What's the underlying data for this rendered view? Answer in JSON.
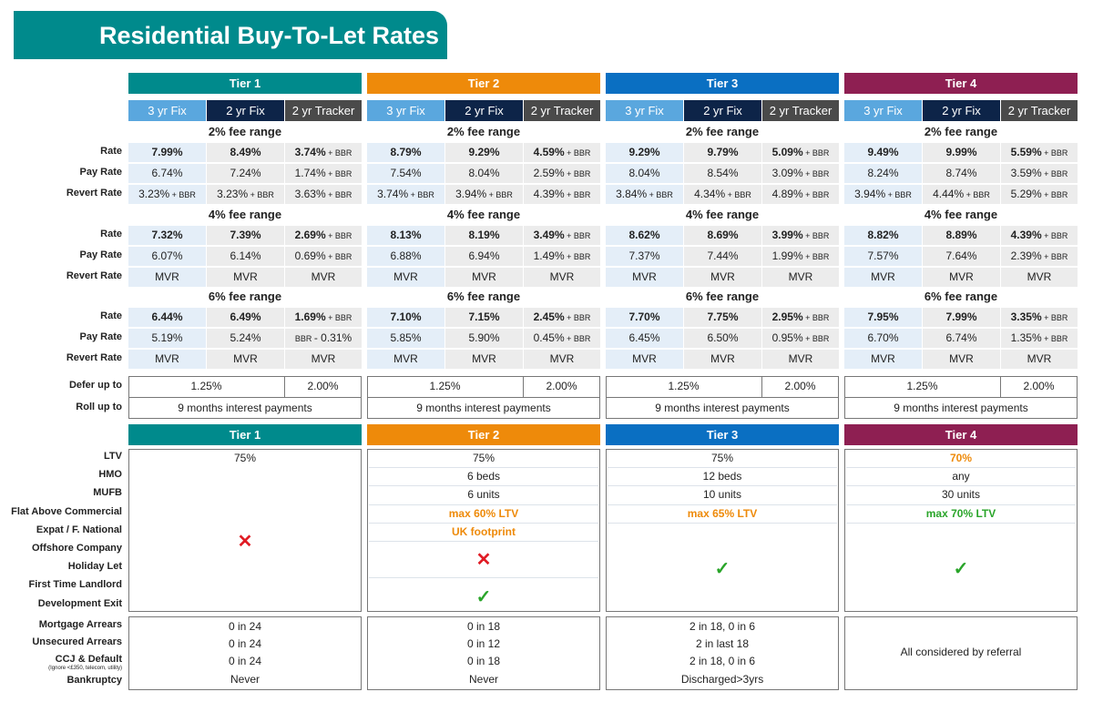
{
  "title": "Residential Buy-To-Let Rates",
  "products": [
    "3 yr Fix",
    "2 yr Fix",
    "2 yr Tracker"
  ],
  "product_colors": [
    "#5aa7de",
    "#0d2448",
    "#4a4a4a"
  ],
  "fee_ranges": [
    "2% fee range",
    "4% fee range",
    "6% fee range"
  ],
  "row_labels": [
    "Rate",
    "Pay Rate",
    "Revert Rate"
  ],
  "defer_label": "Defer up to",
  "rollup_label": "Roll up  to",
  "criteria_labels": [
    "LTV",
    "HMO",
    "MUFB",
    "Flat Above Commercial",
    "Expat / F. National",
    "Offshore Company",
    "Holiday Let",
    "First Time Landlord",
    "Development Exit"
  ],
  "credit_labels": [
    "Mortgage Arrears",
    "Unsecured Arrears",
    "CCJ & Default",
    "Bankruptcy"
  ],
  "ccj_note": "(Ignore <£350, telecom, utility)",
  "colors": {
    "orange": "#ee8a0a",
    "green": "#2aa52a",
    "red": "#e01b24"
  },
  "tiers": [
    {
      "name": "Tier 1",
      "color": "#008a8c",
      "rates": [
        [
          [
            {
              "v": "7.99%"
            },
            {
              "v": "8.49%"
            },
            {
              "v": "3.74%",
              "s": "+ BBR"
            }
          ],
          [
            {
              "v": "6.74%"
            },
            {
              "v": "7.24%"
            },
            {
              "v": "1.74%",
              "s": "+ BBR"
            }
          ],
          [
            {
              "v": "3.23%",
              "s": "+ BBR"
            },
            {
              "v": "3.23%",
              "s": "+ BBR"
            },
            {
              "v": "3.63%",
              "s": "+ BBR"
            }
          ]
        ],
        [
          [
            {
              "v": "7.32%"
            },
            {
              "v": "7.39%"
            },
            {
              "v": "2.69%",
              "s": "+ BBR"
            }
          ],
          [
            {
              "v": "6.07%"
            },
            {
              "v": "6.14%"
            },
            {
              "v": "0.69%",
              "s": "+ BBR"
            }
          ],
          [
            {
              "v": "MVR"
            },
            {
              "v": "MVR"
            },
            {
              "v": "MVR"
            }
          ]
        ],
        [
          [
            {
              "v": "6.44%"
            },
            {
              "v": "6.49%"
            },
            {
              "v": "1.69%",
              "s": "+ BBR"
            }
          ],
          [
            {
              "v": "5.19%"
            },
            {
              "v": "5.24%"
            },
            {
              "p": "BBR",
              "v": "- 0.31%"
            }
          ],
          [
            {
              "v": "MVR"
            },
            {
              "v": "MVR"
            },
            {
              "v": "MVR"
            }
          ]
        ]
      ],
      "defer": [
        "1.25%",
        "2.00%"
      ],
      "rollup": "9 months interest payments",
      "criteria": [
        {
          "row": 0,
          "span": 1,
          "text": "75%"
        },
        {
          "row": 1,
          "span": 8,
          "icon": "cross-icon"
        }
      ],
      "credit": [
        "0 in 24",
        "0 in 24",
        "0 in 24",
        "Never"
      ]
    },
    {
      "name": "Tier 2",
      "color": "#ee8a0a",
      "rates": [
        [
          [
            {
              "v": "8.79%"
            },
            {
              "v": "9.29%"
            },
            {
              "v": "4.59%",
              "s": "+ BBR"
            }
          ],
          [
            {
              "v": "7.54%"
            },
            {
              "v": "8.04%"
            },
            {
              "v": "2.59%",
              "s": "+ BBR"
            }
          ],
          [
            {
              "v": "3.74%",
              "s": "+ BBR"
            },
            {
              "v": "3.94%",
              "s": "+ BBR"
            },
            {
              "v": "4.39%",
              "s": "+ BBR"
            }
          ]
        ],
        [
          [
            {
              "v": "8.13%"
            },
            {
              "v": "8.19%"
            },
            {
              "v": "3.49%",
              "s": "+ BBR"
            }
          ],
          [
            {
              "v": "6.88%"
            },
            {
              "v": "6.94%"
            },
            {
              "v": "1.49%",
              "s": "+ BBR"
            }
          ],
          [
            {
              "v": "MVR"
            },
            {
              "v": "MVR"
            },
            {
              "v": "MVR"
            }
          ]
        ],
        [
          [
            {
              "v": "7.10%"
            },
            {
              "v": "7.15%"
            },
            {
              "v": "2.45%",
              "s": "+ BBR"
            }
          ],
          [
            {
              "v": "5.85%"
            },
            {
              "v": "5.90%"
            },
            {
              "v": "0.45%",
              "s": "+ BBR"
            }
          ],
          [
            {
              "v": "MVR"
            },
            {
              "v": "MVR"
            },
            {
              "v": "MVR"
            }
          ]
        ]
      ],
      "defer": [
        "1.25%",
        "2.00%"
      ],
      "rollup": "9 months interest payments",
      "criteria": [
        {
          "row": 0,
          "span": 1,
          "text": "75%"
        },
        {
          "row": 1,
          "span": 1,
          "text": "6 beds"
        },
        {
          "row": 2,
          "span": 1,
          "text": "6 units"
        },
        {
          "row": 3,
          "span": 1,
          "text": "max 60% LTV",
          "color": "orange"
        },
        {
          "row": 4,
          "span": 1,
          "text": "UK footprint",
          "color": "orange"
        },
        {
          "row": 5,
          "span": 2,
          "icon": "cross-icon"
        },
        {
          "row": 7,
          "span": 2,
          "icon": "check-icon"
        }
      ],
      "credit": [
        "0 in 18",
        "0 in 12",
        "0 in 18",
        "Never"
      ]
    },
    {
      "name": "Tier 3",
      "color": "#0a6fc2",
      "rates": [
        [
          [
            {
              "v": "9.29%"
            },
            {
              "v": "9.79%"
            },
            {
              "v": "5.09%",
              "s": "+ BBR"
            }
          ],
          [
            {
              "v": "8.04%"
            },
            {
              "v": "8.54%"
            },
            {
              "v": "3.09%",
              "s": "+ BBR"
            }
          ],
          [
            {
              "v": "3.84%",
              "s": "+ BBR"
            },
            {
              "v": "4.34%",
              "s": "+ BBR"
            },
            {
              "v": "4.89%",
              "s": "+ BBR"
            }
          ]
        ],
        [
          [
            {
              "v": "8.62%"
            },
            {
              "v": "8.69%"
            },
            {
              "v": "3.99%",
              "s": "+ BBR"
            }
          ],
          [
            {
              "v": "7.37%"
            },
            {
              "v": "7.44%"
            },
            {
              "v": "1.99%",
              "s": "+ BBR"
            }
          ],
          [
            {
              "v": "MVR"
            },
            {
              "v": "MVR"
            },
            {
              "v": "MVR"
            }
          ]
        ],
        [
          [
            {
              "v": "7.70%"
            },
            {
              "v": "7.75%"
            },
            {
              "v": "2.95%",
              "s": "+ BBR"
            }
          ],
          [
            {
              "v": "6.45%"
            },
            {
              "v": "6.50%"
            },
            {
              "v": "0.95%",
              "s": "+ BBR"
            }
          ],
          [
            {
              "v": "MVR"
            },
            {
              "v": "MVR"
            },
            {
              "v": "MVR"
            }
          ]
        ]
      ],
      "defer": [
        "1.25%",
        "2.00%"
      ],
      "rollup": "9 months interest payments",
      "criteria": [
        {
          "row": 0,
          "span": 1,
          "text": "75%"
        },
        {
          "row": 1,
          "span": 1,
          "text": "12 beds"
        },
        {
          "row": 2,
          "span": 1,
          "text": "10 units"
        },
        {
          "row": 3,
          "span": 1,
          "text": "max 65% LTV",
          "color": "orange"
        },
        {
          "row": 4,
          "span": 5,
          "icon": "check-icon"
        }
      ],
      "credit": [
        "2 in 18, 0 in 6",
        "2 in last 18",
        "2 in 18, 0 in 6",
        "Discharged>3yrs"
      ]
    },
    {
      "name": "Tier 4",
      "color": "#8e1f52",
      "rates": [
        [
          [
            {
              "v": "9.49%"
            },
            {
              "v": "9.99%"
            },
            {
              "v": "5.59%",
              "s": "+ BBR"
            }
          ],
          [
            {
              "v": "8.24%"
            },
            {
              "v": "8.74%"
            },
            {
              "v": "3.59%",
              "s": "+ BBR"
            }
          ],
          [
            {
              "v": "3.94%",
              "s": "+ BBR"
            },
            {
              "v": "4.44%",
              "s": "+ BBR"
            },
            {
              "v": "5.29%",
              "s": "+ BBR"
            }
          ]
        ],
        [
          [
            {
              "v": "8.82%"
            },
            {
              "v": "8.89%"
            },
            {
              "v": "4.39%",
              "s": "+ BBR"
            }
          ],
          [
            {
              "v": "7.57%"
            },
            {
              "v": "7.64%"
            },
            {
              "v": "2.39%",
              "s": "+ BBR"
            }
          ],
          [
            {
              "v": "MVR"
            },
            {
              "v": "MVR"
            },
            {
              "v": "MVR"
            }
          ]
        ],
        [
          [
            {
              "v": "7.95%"
            },
            {
              "v": "7.99%"
            },
            {
              "v": "3.35%",
              "s": "+ BBR"
            }
          ],
          [
            {
              "v": "6.70%"
            },
            {
              "v": "6.74%"
            },
            {
              "v": "1.35%",
              "s": "+ BBR"
            }
          ],
          [
            {
              "v": "MVR"
            },
            {
              "v": "MVR"
            },
            {
              "v": "MVR"
            }
          ]
        ]
      ],
      "defer": [
        "1.25%",
        "2.00%"
      ],
      "rollup": "9 months interest payments",
      "criteria": [
        {
          "row": 0,
          "span": 1,
          "text": "70%",
          "color": "orange"
        },
        {
          "row": 1,
          "span": 1,
          "text": "any"
        },
        {
          "row": 2,
          "span": 1,
          "text": "30 units"
        },
        {
          "row": 3,
          "span": 1,
          "text": "max 70% LTV",
          "color": "green"
        },
        {
          "row": 4,
          "span": 5,
          "icon": "check-icon"
        }
      ],
      "credit_all": "All considered by referral"
    }
  ]
}
